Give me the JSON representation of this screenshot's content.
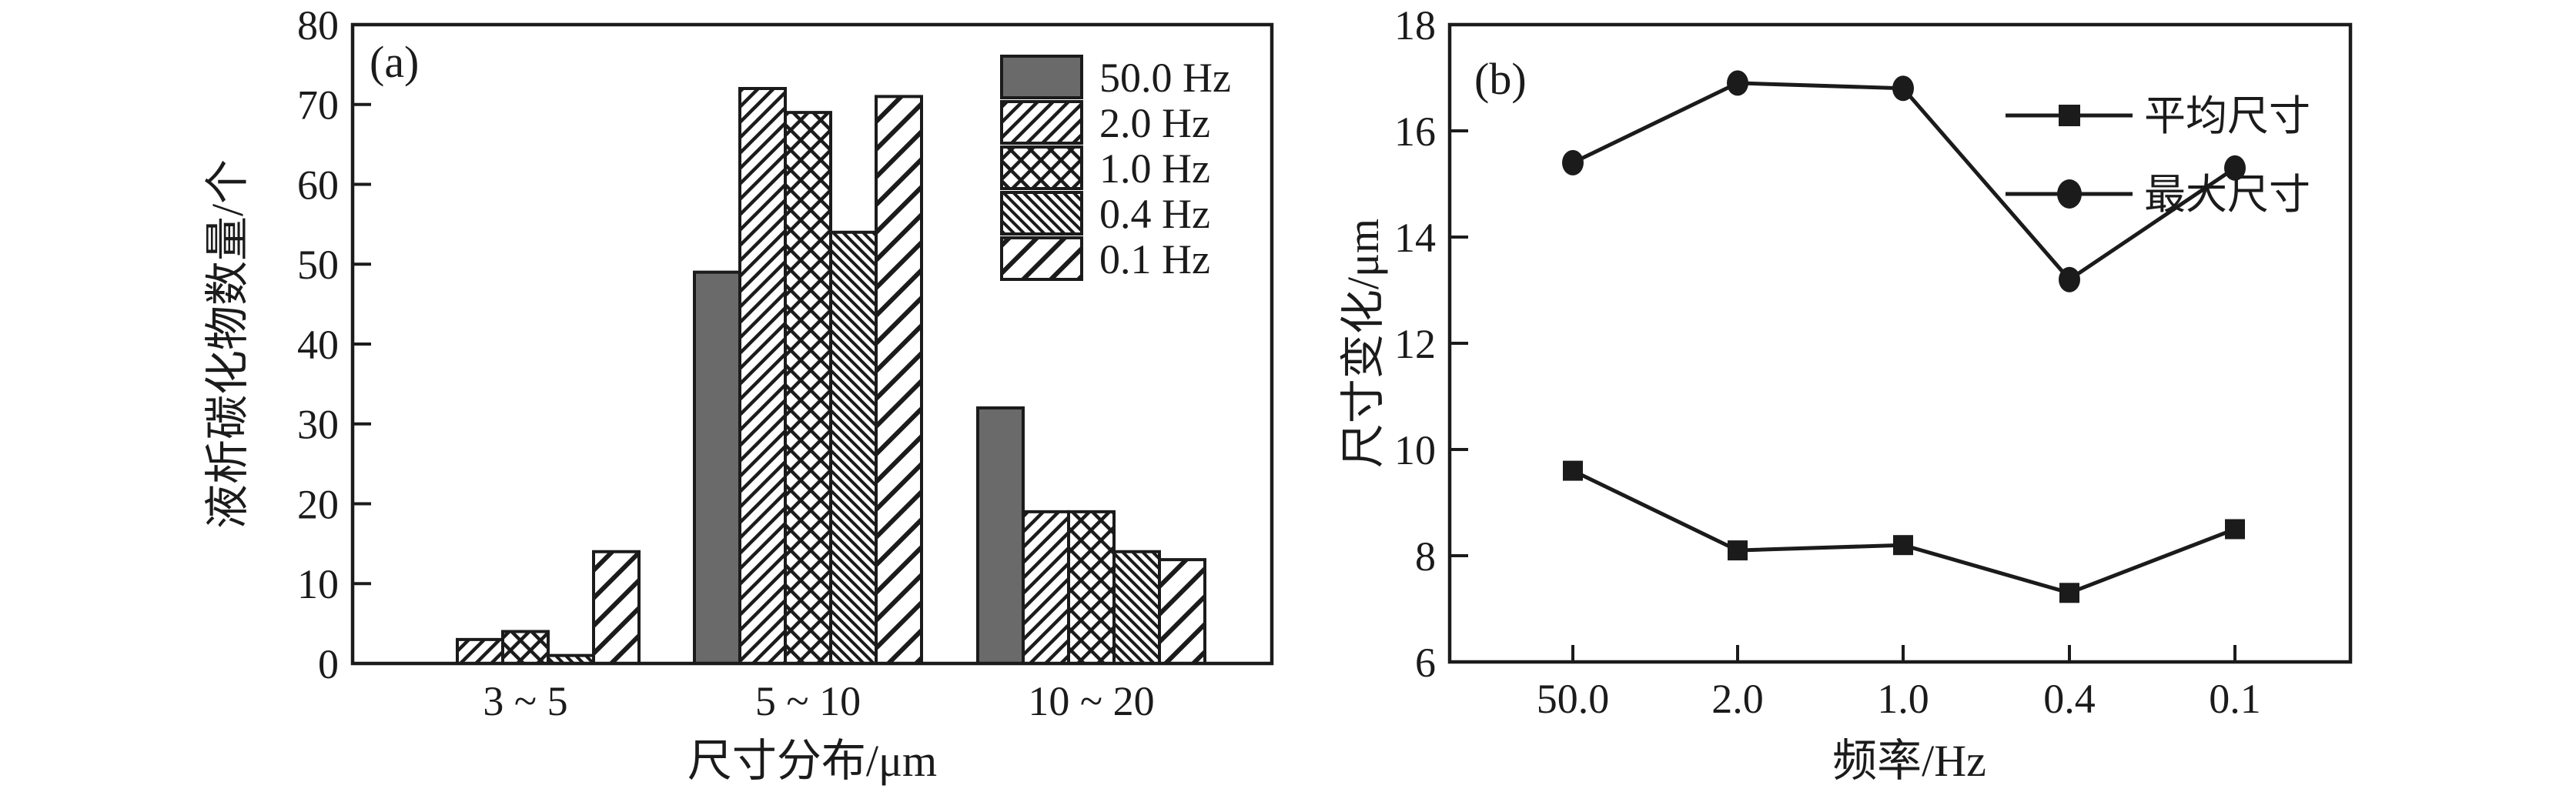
{
  "figure": {
    "background": "#ffffff",
    "ink_color": "#1b1b1b",
    "solid_bar_color": "#6a6a6a"
  },
  "chart_data": [
    {
      "id": "a",
      "type": "bar",
      "title": "(a)",
      "categories": [
        "3 ~ 5",
        "5 ~ 10",
        "10 ~ 20"
      ],
      "series": [
        {
          "name": "50.0 Hz",
          "style": "solid-gray",
          "values": [
            0,
            49,
            32
          ]
        },
        {
          "name": "2.0 Hz",
          "style": "hatch-diagonal-up",
          "values": [
            3,
            72,
            19
          ]
        },
        {
          "name": "1.0 Hz",
          "style": "hatch-crosshatch",
          "values": [
            4,
            69,
            19
          ]
        },
        {
          "name": "0.4 Hz",
          "style": "hatch-diagonal-down-fine",
          "values": [
            1,
            54,
            14
          ]
        },
        {
          "name": "0.1 Hz",
          "style": "hatch-diagonal-up-wide",
          "values": [
            14,
            71,
            13
          ]
        }
      ],
      "xlabel": "尺寸分布/μm",
      "ylabel": "液析碳化物数量/个",
      "ylim": [
        0,
        80
      ],
      "yticks": [
        0,
        10,
        20,
        30,
        40,
        50,
        60,
        70,
        80
      ],
      "grid": false,
      "legend_position": "top-right-inside"
    },
    {
      "id": "b",
      "type": "line",
      "title": "(b)",
      "x": [
        "50.0",
        "2.0",
        "1.0",
        "0.4",
        "0.1"
      ],
      "series": [
        {
          "name": "平均尺寸",
          "marker": "square",
          "values": [
            9.6,
            8.1,
            8.2,
            7.3,
            8.5
          ]
        },
        {
          "name": "最大尺寸",
          "marker": "circle",
          "values": [
            15.4,
            16.9,
            16.8,
            13.2,
            15.3
          ]
        }
      ],
      "xlabel": "频率/Hz",
      "ylabel": "尺寸变化/μm",
      "ylim": [
        6,
        18
      ],
      "yticks": [
        6,
        8,
        10,
        12,
        14,
        16,
        18
      ],
      "grid": false,
      "legend_position": "top-right-inside"
    }
  ]
}
